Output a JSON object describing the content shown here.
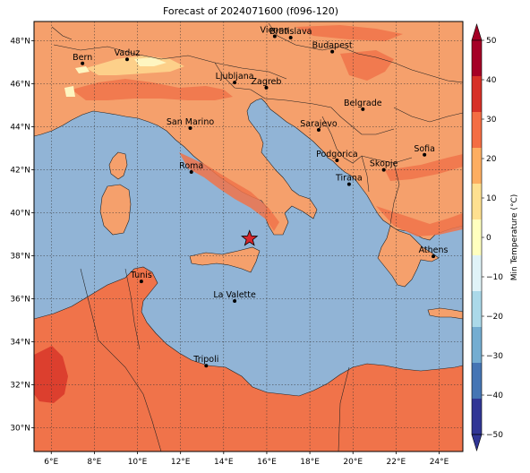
{
  "title": "Forecast of 2024071600 (f096-120)",
  "colorbar": {
    "label": "Min Temperature (°C)",
    "ticks": [
      "50",
      "40",
      "30",
      "20",
      "10",
      "0",
      "−10",
      "−20",
      "−30",
      "−40",
      "−50"
    ],
    "colors": [
      "#a50026",
      "#d73027",
      "#f46d43",
      "#fdae61",
      "#fee090",
      "#ffffbf",
      "#e0f3f8",
      "#abd9e9",
      "#74add1",
      "#4575b4",
      "#313695"
    ]
  },
  "axes": {
    "lat_ticks": [
      "48°N",
      "46°N",
      "44°N",
      "42°N",
      "40°N",
      "38°N",
      "36°N",
      "34°N",
      "32°N",
      "30°N"
    ],
    "lon_ticks": [
      "6°E",
      "8°E",
      "10°E",
      "12°E",
      "14°E",
      "16°E",
      "18°E",
      "20°E",
      "22°E",
      "24°E"
    ]
  },
  "fields": {
    "sea_color": "#91b4d6",
    "land_color": "#f5a06c",
    "warm_color": "#f0734a",
    "hot_color": "#d93a2b",
    "cool_color": "#fdd08a",
    "cold_color": "#fef5c0"
  },
  "marker": {
    "name": "forecast-point",
    "lon": 15.2,
    "lat": 38.8,
    "color": "#d7262b"
  },
  "cities": [
    {
      "name": "Bern",
      "lon": 7.45,
      "lat": 46.95
    },
    {
      "name": "Vaduz",
      "lon": 9.52,
      "lat": 47.14
    },
    {
      "name": "Vienna",
      "lon": 16.37,
      "lat": 48.21
    },
    {
      "name": "Bratislava",
      "lon": 17.11,
      "lat": 48.15
    },
    {
      "name": "Budapest",
      "lon": 19.04,
      "lat": 47.5
    },
    {
      "name": "Ljubljana",
      "lon": 14.51,
      "lat": 46.06
    },
    {
      "name": "Zagreb",
      "lon": 15.98,
      "lat": 45.82
    },
    {
      "name": "Belgrade",
      "lon": 20.46,
      "lat": 44.82
    },
    {
      "name": "San Marino",
      "lon": 12.45,
      "lat": 43.94
    },
    {
      "name": "Sarajevo",
      "lon": 18.41,
      "lat": 43.86
    },
    {
      "name": "Sofia",
      "lon": 23.32,
      "lat": 42.7
    },
    {
      "name": "Podgorica",
      "lon": 19.26,
      "lat": 42.44
    },
    {
      "name": "Skopje",
      "lon": 21.43,
      "lat": 42.0
    },
    {
      "name": "Roma",
      "lon": 12.5,
      "lat": 41.9
    },
    {
      "name": "Tirana",
      "lon": 19.82,
      "lat": 41.33
    },
    {
      "name": "Athens",
      "lon": 23.73,
      "lat": 37.98
    },
    {
      "name": "Tunis",
      "lon": 10.18,
      "lat": 36.81
    },
    {
      "name": "La Valette",
      "lon": 14.51,
      "lat": 35.9
    },
    {
      "name": "Tripoli",
      "lon": 13.19,
      "lat": 32.89
    }
  ]
}
